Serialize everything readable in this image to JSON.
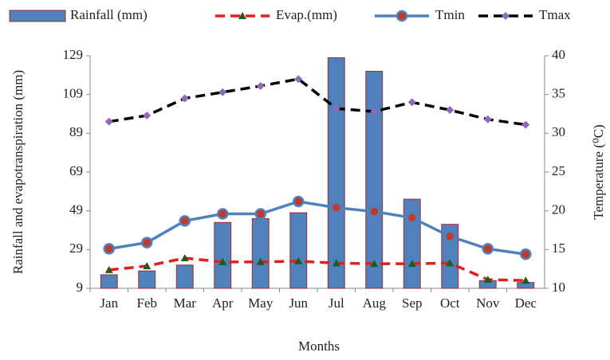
{
  "chart_data": {
    "type": "combo",
    "x_label": "Months",
    "y_label": "Rainfall and evapotranspiration (mm)",
    "y2_label": "Temperature (⁰C)",
    "categories": [
      "Jan",
      "Feb",
      "Mar",
      "Apr",
      "May",
      "Jun",
      "Jul",
      "Aug",
      "Sep",
      "Oct",
      "Nov",
      "Dec"
    ],
    "ylim": [
      9,
      129
    ],
    "yticks": [
      9,
      29,
      49,
      69,
      89,
      109,
      129
    ],
    "y2lim": [
      10,
      40
    ],
    "y2ticks": [
      10,
      15,
      20,
      25,
      30,
      35,
      40
    ],
    "grid": false,
    "legend": "top",
    "series": [
      {
        "name": "Rainfall (mm)",
        "type": "bar",
        "color": "#4f81bd",
        "edge_color": "#9b2d30",
        "values": [
          16,
          18,
          21,
          43,
          45,
          48,
          128,
          121,
          55,
          42,
          13,
          12
        ]
      },
      {
        "name": "Evap.(mm)",
        "type": "line",
        "color": "#e02020",
        "linestyle": "dashed",
        "marker": "triangle",
        "marker_color": "#1f5a1f",
        "values": [
          18.5,
          20.5,
          24.6,
          22.6,
          22.6,
          23,
          22,
          21.7,
          21.7,
          22,
          13.5,
          13
        ]
      },
      {
        "name": "Tmin",
        "type": "line",
        "axis": "y2",
        "color": "#4f81bd",
        "linestyle": "solid",
        "marker": "circle",
        "marker_color": "#c0392b",
        "values": [
          15.1,
          15.9,
          18.7,
          19.6,
          19.6,
          21.2,
          20.4,
          19.9,
          19.1,
          16.7,
          15.1,
          14.4
        ]
      },
      {
        "name": "Tmax",
        "type": "line",
        "axis": "y2",
        "color": "#000000",
        "linestyle": "dashed",
        "marker": "diamond",
        "marker_color": "#8e6bb8",
        "values": [
          31.5,
          32.3,
          34.5,
          35.3,
          36.1,
          37.0,
          33.2,
          32.8,
          34.0,
          33.0,
          31.8,
          31.1
        ]
      }
    ]
  }
}
